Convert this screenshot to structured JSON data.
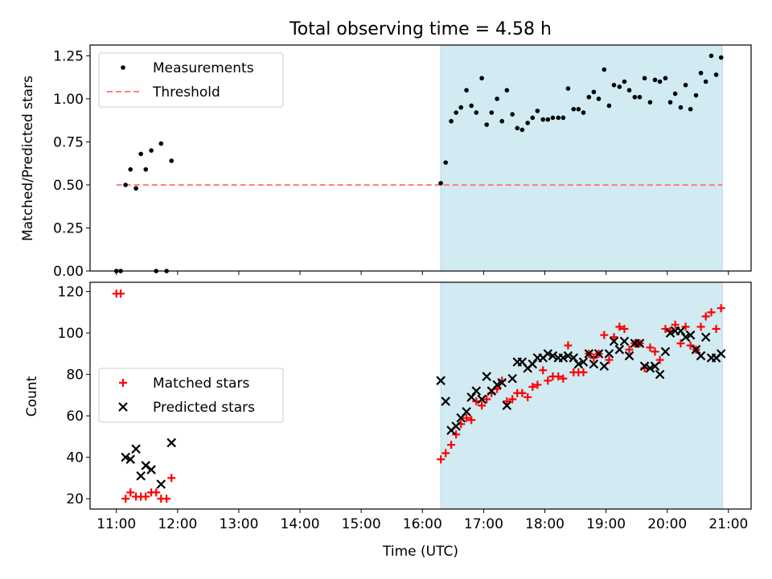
{
  "figure": {
    "title": "Total observing time = 4.58 h"
  },
  "chart_data": [
    {
      "type": "scatter",
      "panel": "top",
      "ylabel": "Matched/Predicted stars",
      "ylim": [
        0,
        1.3125
      ],
      "yticks": [
        0,
        0.25,
        0.5,
        0.75,
        1.0,
        1.25
      ],
      "ytick_labels": [
        "0.00",
        "0.25",
        "0.50",
        "0.75",
        "1.00",
        "1.25"
      ],
      "xlim": [
        10.57,
        21.37
      ],
      "shaded_region": {
        "x": [
          16.3,
          20.9
        ],
        "color": "#add8e6"
      },
      "threshold": {
        "value": 0.5,
        "x": [
          11.0,
          20.9
        ],
        "color": "#ff7f7f"
      },
      "legend": {
        "placement": "upper left",
        "entries": [
          {
            "label": "Measurements",
            "marker": "dot",
            "color": "#000000"
          },
          {
            "label": "Threshold",
            "marker": "dashed-line",
            "color": "#ff7f7f"
          }
        ]
      },
      "series": [
        {
          "name": "Measurements",
          "color": "#000000",
          "points": [
            [
              11.0,
              0.0
            ],
            [
              11.07,
              0.0
            ],
            [
              11.15,
              0.5
            ],
            [
              11.23,
              0.59
            ],
            [
              11.32,
              0.48
            ],
            [
              11.4,
              0.68
            ],
            [
              11.48,
              0.59
            ],
            [
              11.57,
              0.7
            ],
            [
              11.65,
              0.0
            ],
            [
              11.73,
              0.74
            ],
            [
              11.82,
              0.0
            ],
            [
              11.9,
              0.64
            ],
            [
              16.3,
              0.51
            ],
            [
              16.38,
              0.63
            ],
            [
              16.47,
              0.87
            ],
            [
              16.55,
              0.92
            ],
            [
              16.63,
              0.95
            ],
            [
              16.72,
              1.05
            ],
            [
              16.8,
              0.96
            ],
            [
              16.88,
              0.92
            ],
            [
              16.97,
              1.12
            ],
            [
              17.05,
              0.85
            ],
            [
              17.13,
              0.92
            ],
            [
              17.22,
              1.0
            ],
            [
              17.3,
              0.87
            ],
            [
              17.38,
              1.05
            ],
            [
              17.47,
              0.91
            ],
            [
              17.55,
              0.83
            ],
            [
              17.63,
              0.82
            ],
            [
              17.72,
              0.86
            ],
            [
              17.8,
              0.89
            ],
            [
              17.88,
              0.93
            ],
            [
              17.97,
              0.88
            ],
            [
              18.05,
              0.88
            ],
            [
              18.13,
              0.89
            ],
            [
              18.22,
              0.89
            ],
            [
              18.3,
              0.89
            ],
            [
              18.38,
              1.06
            ],
            [
              18.47,
              0.94
            ],
            [
              18.55,
              0.94
            ],
            [
              18.63,
              0.92
            ],
            [
              18.72,
              1.01
            ],
            [
              18.8,
              1.04
            ],
            [
              18.88,
              1.0
            ],
            [
              18.97,
              1.17
            ],
            [
              19.05,
              0.96
            ],
            [
              19.13,
              1.08
            ],
            [
              19.22,
              1.07
            ],
            [
              19.3,
              1.1
            ],
            [
              19.38,
              1.05
            ],
            [
              19.47,
              1.01
            ],
            [
              19.55,
              1.01
            ],
            [
              19.63,
              1.12
            ],
            [
              19.72,
              0.98
            ],
            [
              19.8,
              1.11
            ],
            [
              19.88,
              1.1
            ],
            [
              19.97,
              1.12
            ],
            [
              20.05,
              0.98
            ],
            [
              20.13,
              1.03
            ],
            [
              20.22,
              0.95
            ],
            [
              20.3,
              1.08
            ],
            [
              20.38,
              0.94
            ],
            [
              20.47,
              1.02
            ],
            [
              20.55,
              1.15
            ],
            [
              20.63,
              1.1
            ],
            [
              20.72,
              1.25
            ],
            [
              20.8,
              1.14
            ],
            [
              20.88,
              1.24
            ]
          ]
        }
      ]
    },
    {
      "type": "scatter",
      "panel": "bottom",
      "xlabel": "Time (UTC)",
      "ylabel": "Count",
      "ylim": [
        15,
        124.5
      ],
      "yticks": [
        20,
        40,
        60,
        80,
        100,
        120
      ],
      "ytick_labels": [
        "20",
        "40",
        "60",
        "80",
        "100",
        "120"
      ],
      "xlim": [
        10.57,
        21.37
      ],
      "xticks": [
        11,
        12,
        13,
        14,
        15,
        16,
        17,
        18,
        19,
        20,
        21
      ],
      "xtick_labels": [
        "11:00",
        "12:00",
        "13:00",
        "14:00",
        "15:00",
        "16:00",
        "17:00",
        "18:00",
        "19:00",
        "20:00",
        "21:00"
      ],
      "shaded_region": {
        "x": [
          16.3,
          20.9
        ],
        "color": "#add8e6"
      },
      "legend": {
        "placement": "center left",
        "entries": [
          {
            "label": "Matched stars",
            "marker": "plus",
            "color": "#ff0000"
          },
          {
            "label": "Predicted stars",
            "marker": "x",
            "color": "#000000"
          }
        ]
      },
      "series": [
        {
          "name": "Matched stars",
          "marker": "plus",
          "color": "#ff0000",
          "points": [
            [
              11.0,
              119
            ],
            [
              11.07,
              119
            ],
            [
              11.15,
              20
            ],
            [
              11.23,
              23
            ],
            [
              11.32,
              21
            ],
            [
              11.4,
              21
            ],
            [
              11.48,
              21
            ],
            [
              11.57,
              23
            ],
            [
              11.65,
              23
            ],
            [
              11.73,
              20
            ],
            [
              11.82,
              20
            ],
            [
              11.9,
              30
            ],
            [
              16.3,
              39
            ],
            [
              16.38,
              42
            ],
            [
              16.47,
              46
            ],
            [
              16.55,
              51
            ],
            [
              16.63,
              56
            ],
            [
              16.72,
              59
            ],
            [
              16.8,
              58
            ],
            [
              16.88,
              67
            ],
            [
              16.97,
              65
            ],
            [
              17.05,
              68
            ],
            [
              17.13,
              71
            ],
            [
              17.22,
              73
            ],
            [
              17.3,
              77
            ],
            [
              17.38,
              67
            ],
            [
              17.47,
              68
            ],
            [
              17.55,
              71
            ],
            [
              17.63,
              71
            ],
            [
              17.72,
              69
            ],
            [
              17.8,
              74
            ],
            [
              17.88,
              75
            ],
            [
              17.97,
              82
            ],
            [
              18.05,
              77
            ],
            [
              18.13,
              79
            ],
            [
              18.22,
              79
            ],
            [
              18.3,
              78
            ],
            [
              18.38,
              94
            ],
            [
              18.47,
              81
            ],
            [
              18.55,
              81
            ],
            [
              18.63,
              81
            ],
            [
              18.72,
              90
            ],
            [
              18.8,
              88
            ],
            [
              18.88,
              90
            ],
            [
              18.97,
              99
            ],
            [
              19.05,
              87
            ],
            [
              19.13,
              98
            ],
            [
              19.22,
              103
            ],
            [
              19.3,
              102
            ],
            [
              19.38,
              92
            ],
            [
              19.47,
              95
            ],
            [
              19.55,
              95
            ],
            [
              19.63,
              83
            ],
            [
              19.72,
              93
            ],
            [
              19.8,
              91
            ],
            [
              19.88,
              87
            ],
            [
              19.97,
              102
            ],
            [
              20.05,
              101
            ],
            [
              20.13,
              104
            ],
            [
              20.22,
              95
            ],
            [
              20.3,
              103
            ],
            [
              20.38,
              94
            ],
            [
              20.47,
              92
            ],
            [
              20.55,
              103
            ],
            [
              20.63,
              108
            ],
            [
              20.72,
              110
            ],
            [
              20.8,
              102
            ],
            [
              20.88,
              112
            ]
          ]
        },
        {
          "name": "Predicted stars",
          "marker": "x",
          "color": "#000000",
          "points": [
            [
              11.15,
              40
            ],
            [
              11.23,
              39
            ],
            [
              11.32,
              44
            ],
            [
              11.4,
              31
            ],
            [
              11.48,
              36
            ],
            [
              11.57,
              34
            ],
            [
              11.73,
              27
            ],
            [
              11.9,
              47
            ],
            [
              16.3,
              77
            ],
            [
              16.38,
              67
            ],
            [
              16.47,
              53
            ],
            [
              16.55,
              55
            ],
            [
              16.63,
              59
            ],
            [
              16.72,
              62
            ],
            [
              16.8,
              69
            ],
            [
              16.88,
              72
            ],
            [
              16.97,
              68
            ],
            [
              17.05,
              79
            ],
            [
              17.13,
              72
            ],
            [
              17.22,
              75
            ],
            [
              17.3,
              76
            ],
            [
              17.38,
              65
            ],
            [
              17.47,
              78
            ],
            [
              17.55,
              86
            ],
            [
              17.63,
              86
            ],
            [
              17.72,
              83
            ],
            [
              17.8,
              85
            ],
            [
              17.88,
              88
            ],
            [
              17.97,
              88
            ],
            [
              18.05,
              90
            ],
            [
              18.13,
              89
            ],
            [
              18.22,
              88
            ],
            [
              18.3,
              88
            ],
            [
              18.38,
              89
            ],
            [
              18.47,
              88
            ],
            [
              18.55,
              85
            ],
            [
              18.63,
              86
            ],
            [
              18.72,
              90
            ],
            [
              18.8,
              85
            ],
            [
              18.88,
              90
            ],
            [
              18.97,
              84
            ],
            [
              19.05,
              90
            ],
            [
              19.13,
              96
            ],
            [
              19.22,
              92
            ],
            [
              19.3,
              96
            ],
            [
              19.38,
              89
            ],
            [
              19.47,
              95
            ],
            [
              19.55,
              95
            ],
            [
              19.63,
              84
            ],
            [
              19.72,
              83
            ],
            [
              19.8,
              84
            ],
            [
              19.88,
              80
            ],
            [
              19.97,
              91
            ],
            [
              20.05,
              100
            ],
            [
              20.13,
              101
            ],
            [
              20.22,
              101
            ],
            [
              20.3,
              98
            ],
            [
              20.38,
              99
            ],
            [
              20.47,
              92
            ],
            [
              20.55,
              89
            ],
            [
              20.63,
              98
            ],
            [
              20.72,
              88
            ],
            [
              20.8,
              88
            ],
            [
              20.88,
              90
            ]
          ]
        }
      ]
    }
  ]
}
